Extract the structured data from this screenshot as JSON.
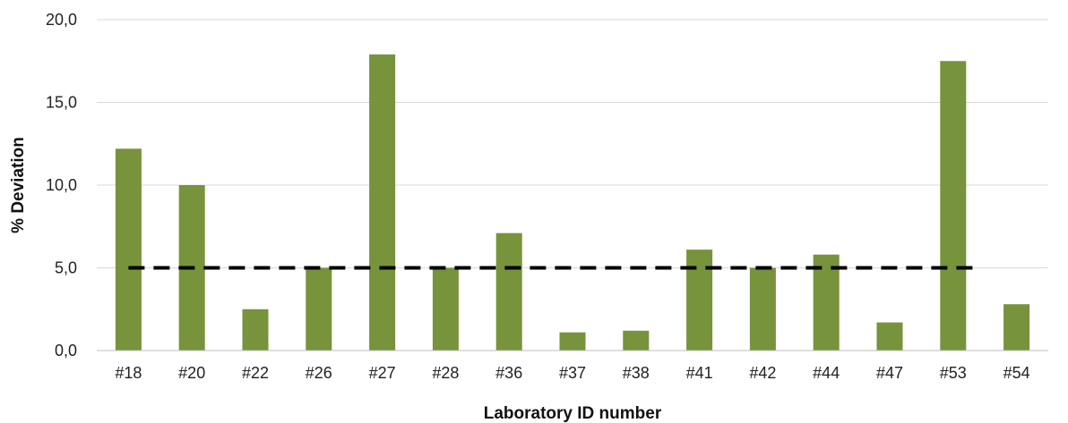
{
  "chart_data": {
    "type": "bar",
    "categories": [
      "#18",
      "#20",
      "#22",
      "#26",
      "#27",
      "#28",
      "#36",
      "#37",
      "#38",
      "#41",
      "#42",
      "#44",
      "#47",
      "#53",
      "#54"
    ],
    "values": [
      12.2,
      10.0,
      2.5,
      5.0,
      17.9,
      5.0,
      7.1,
      1.1,
      1.2,
      6.1,
      5.0,
      5.8,
      1.7,
      17.5,
      2.8
    ],
    "xlabel": "Laboratory ID number",
    "ylabel": "% Deviation",
    "ylim": [
      0,
      20
    ],
    "yticks": [
      "0,0",
      "5,0",
      "10,0",
      "15,0",
      "20,0"
    ],
    "reference_line": {
      "value": 5.0,
      "style": "dashed",
      "color": "#000000"
    },
    "bar_color": "#77933c",
    "grid": true,
    "legend": "none"
  }
}
